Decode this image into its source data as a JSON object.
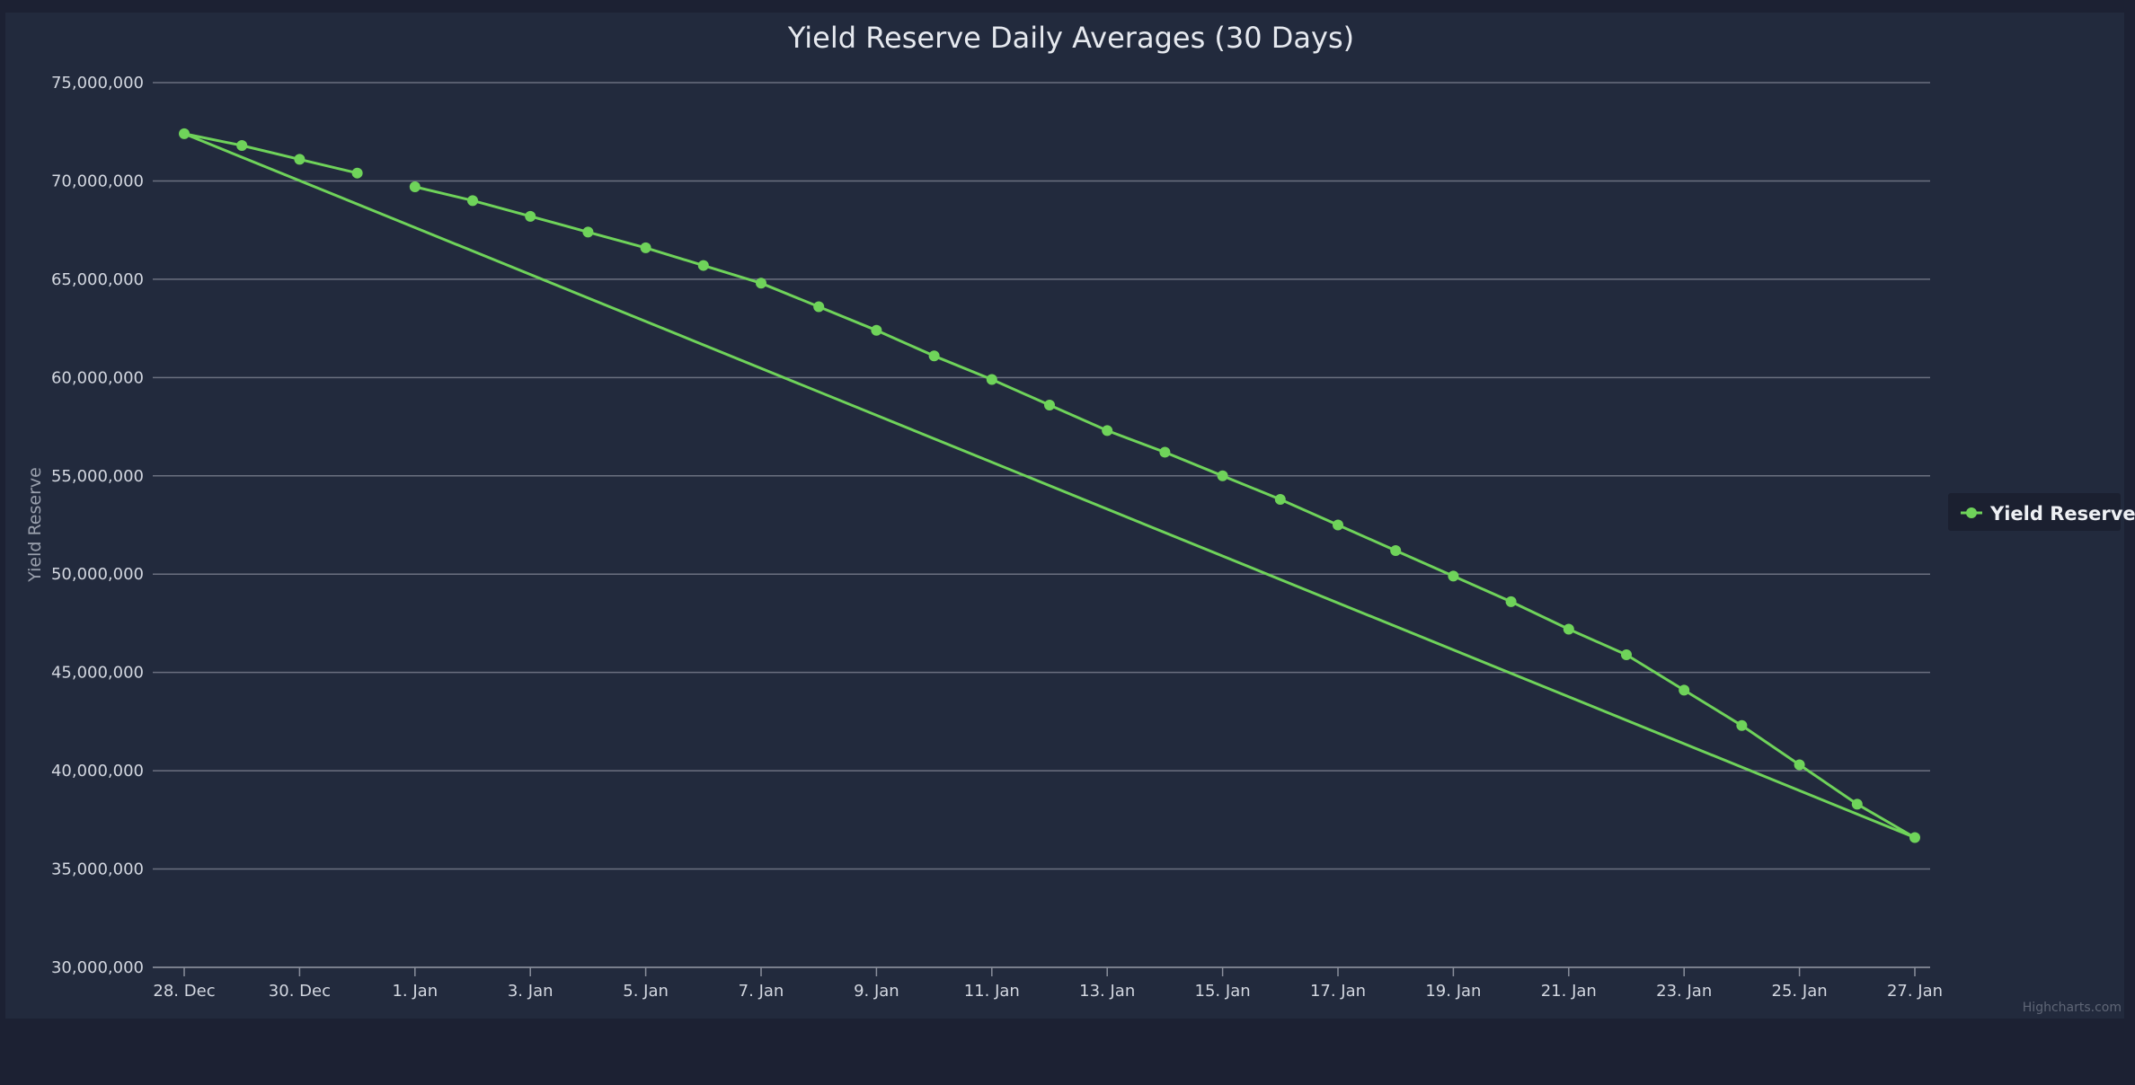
{
  "chart_data": {
    "type": "line",
    "title": "Yield Reserve Daily Averages (30 Days)",
    "ylabel": "Yield Reserve",
    "xlabel": "",
    "ylim": [
      30000000,
      75000000
    ],
    "y_ticks": [
      "30,000,000",
      "35,000,000",
      "40,000,000",
      "45,000,000",
      "50,000,000",
      "55,000,000",
      "60,000,000",
      "65,000,000",
      "70,000,000",
      "75,000,000"
    ],
    "x_ticks": [
      "28. Dec",
      "30. Dec",
      "1. Jan",
      "3. Jan",
      "5. Jan",
      "7. Jan",
      "9. Jan",
      "11. Jan",
      "13. Jan",
      "15. Jan",
      "17. Jan",
      "19. Jan",
      "21. Jan",
      "23. Jan",
      "25. Jan",
      "27. Jan"
    ],
    "grid": true,
    "legend_position": "right",
    "series": [
      {
        "name": "Yield Reserve",
        "color": "#6fd35a",
        "points": [
          [
            "28. Dec",
            72400000
          ],
          [
            "29. Dec",
            71800000
          ],
          [
            "30. Dec",
            71100000
          ],
          [
            "31. Dec",
            70400000
          ],
          [
            "1. Jan",
            69700000
          ],
          [
            "2. Jan",
            69000000
          ],
          [
            "3. Jan",
            68200000
          ],
          [
            "4. Jan",
            67400000
          ],
          [
            "5. Jan",
            66600000
          ],
          [
            "6. Jan",
            65700000
          ],
          [
            "7. Jan",
            64800000
          ],
          [
            "8. Jan",
            63600000
          ],
          [
            "9. Jan",
            62400000
          ],
          [
            "10. Jan",
            61100000
          ],
          [
            "11. Jan",
            59900000
          ],
          [
            "12. Jan",
            58600000
          ],
          [
            "13. Jan",
            57300000
          ],
          [
            "14. Jan",
            56200000
          ],
          [
            "15. Jan",
            55000000
          ],
          [
            "16. Jan",
            53800000
          ],
          [
            "17. Jan",
            52500000
          ],
          [
            "18. Jan",
            51200000
          ],
          [
            "19. Jan",
            49900000
          ],
          [
            "20. Jan",
            48600000
          ],
          [
            "21. Jan",
            47200000
          ],
          [
            "22. Jan",
            45900000
          ],
          [
            "23. Jan",
            44100000
          ],
          [
            "24. Jan",
            42300000
          ],
          [
            "25. Jan",
            40300000
          ],
          [
            "26. Jan",
            38300000
          ],
          [
            "27. Jan",
            36600000
          ]
        ],
        "line_order": [
          "28. Dec",
          "29. Dec",
          "30. Dec",
          "31. Dec",
          null,
          "1. Jan",
          "2. Jan",
          "3. Jan",
          "4. Jan",
          "5. Jan",
          "6. Jan",
          "7. Jan",
          "8. Jan",
          "9. Jan",
          "10. Jan",
          "11. Jan",
          "12. Jan",
          "13. Jan",
          "14. Jan",
          "15. Jan",
          "16. Jan",
          "17. Jan",
          "18. Jan",
          "19. Jan",
          "20. Jan",
          "21. Jan",
          "22. Jan",
          "23. Jan",
          "24. Jan",
          "25. Jan",
          "26. Jan",
          "27. Jan",
          "28. Dec"
        ]
      }
    ]
  },
  "credits": "Highcharts.com",
  "colors": {
    "panel_bg": "#222a3d",
    "page_bg": "#1c2133",
    "grid": "#6b7080",
    "series": "#6fd35a",
    "legend_bg": "#1b2030"
  }
}
